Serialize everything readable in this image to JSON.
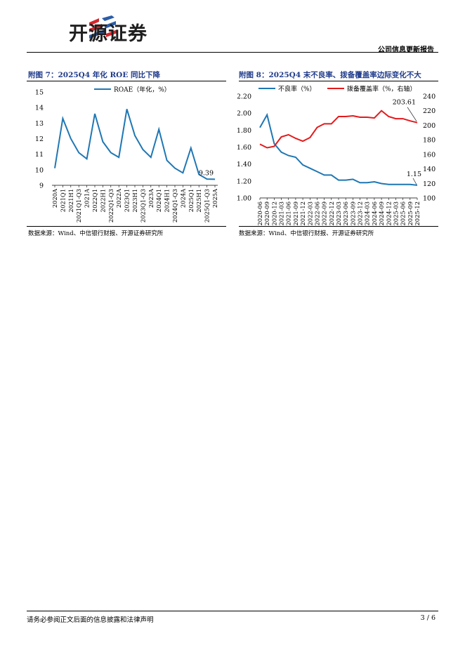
{
  "header": {
    "company": "开源证券",
    "report_type": "公司信息更新报告",
    "brand_colors": {
      "red": "#d7262b",
      "blue": "#2b5da8"
    }
  },
  "figures": {
    "left": {
      "title": "附图 7：2025Q4 年化 ROE 同比下降",
      "source": "数据来源：Wind、中信银行财报、开源证券研究所"
    },
    "right": {
      "title": "附图 8：2025Q4 末不良率、拨备覆盖率边际变化不大",
      "source": "数据来源：Wind、中信银行财报、开源证券研究所"
    }
  },
  "chart_data": [
    {
      "type": "line",
      "title": "附图 7：2025Q4 年化 ROE 同比下降",
      "categories": [
        "2020A",
        "2021Q1",
        "2021H1",
        "2021Q1-Q3",
        "2021A",
        "2022Q1",
        "2022H1",
        "2022Q1-Q3",
        "2022A",
        "2023Q1",
        "2023H1",
        "2023Q1-Q3",
        "2023A",
        "2024Q1",
        "2024H1",
        "2024Q1-Q3",
        "2024A",
        "2025Q1",
        "2025H1",
        "2025Q1-Q3",
        "2025A"
      ],
      "series": [
        {
          "name": "ROAE（年化，%）",
          "color": "#1f77b4",
          "values": [
            10.1,
            13.3,
            12.0,
            11.1,
            10.7,
            13.6,
            11.8,
            11.1,
            10.8,
            13.9,
            12.2,
            11.3,
            10.8,
            12.6,
            10.6,
            10.1,
            9.8,
            11.4,
            9.7,
            9.4,
            9.39
          ]
        }
      ],
      "ylim": [
        9,
        15
      ],
      "yticks": [
        9,
        10,
        11,
        12,
        13,
        14,
        15
      ],
      "annotations": [
        {
          "text": "9.39",
          "index": 20
        }
      ],
      "legend": "top-center"
    },
    {
      "type": "line",
      "title": "附图 8：2025Q4 末不良率、拨备覆盖率边际变化不大",
      "categories": [
        "2020-06",
        "2020-09",
        "2020-12",
        "2021-03",
        "2021-06",
        "2021-09",
        "2021-12",
        "2022-03",
        "2022-06",
        "2022-09",
        "2022-12",
        "2023-03",
        "2023-06",
        "2023-09",
        "2023-12",
        "2024-03",
        "2024-06",
        "2024-09",
        "2024-12",
        "2025-03",
        "2025-06",
        "2025-09",
        "2025-12"
      ],
      "series": [
        {
          "name": "不良率（%）",
          "axis": "left",
          "color": "#1f77b4",
          "values": [
            1.83,
            1.98,
            1.64,
            1.54,
            1.5,
            1.48,
            1.39,
            1.35,
            1.31,
            1.27,
            1.27,
            1.21,
            1.21,
            1.22,
            1.18,
            1.18,
            1.19,
            1.17,
            1.16,
            1.16,
            1.16,
            1.16,
            1.15
          ]
        },
        {
          "name": "拨备覆盖率（%，右轴）",
          "axis": "right",
          "color": "#e31a1c",
          "values": [
            174,
            169,
            171,
            184,
            187,
            182,
            178,
            183,
            197,
            202,
            202,
            212,
            212,
            213,
            211,
            211,
            210,
            220,
            212,
            209,
            209,
            206,
            203.61
          ]
        }
      ],
      "ylim": [
        1.0,
        2.2
      ],
      "yticks": [
        "1.00",
        "1.20",
        "1.40",
        "1.60",
        "1.80",
        "2.00",
        "2.20"
      ],
      "y2lim": [
        100,
        240
      ],
      "y2ticks": [
        100,
        120,
        140,
        160,
        180,
        200,
        220,
        240
      ],
      "annotations": [
        {
          "text": "203.61",
          "series": 1,
          "index": 22
        },
        {
          "text": "1.15",
          "series": 0,
          "index": 22
        }
      ],
      "legend": "top-center"
    }
  ],
  "footer": {
    "disclaimer": "请务必参阅正文后面的信息披露和法律声明",
    "page": "3 / 6"
  }
}
